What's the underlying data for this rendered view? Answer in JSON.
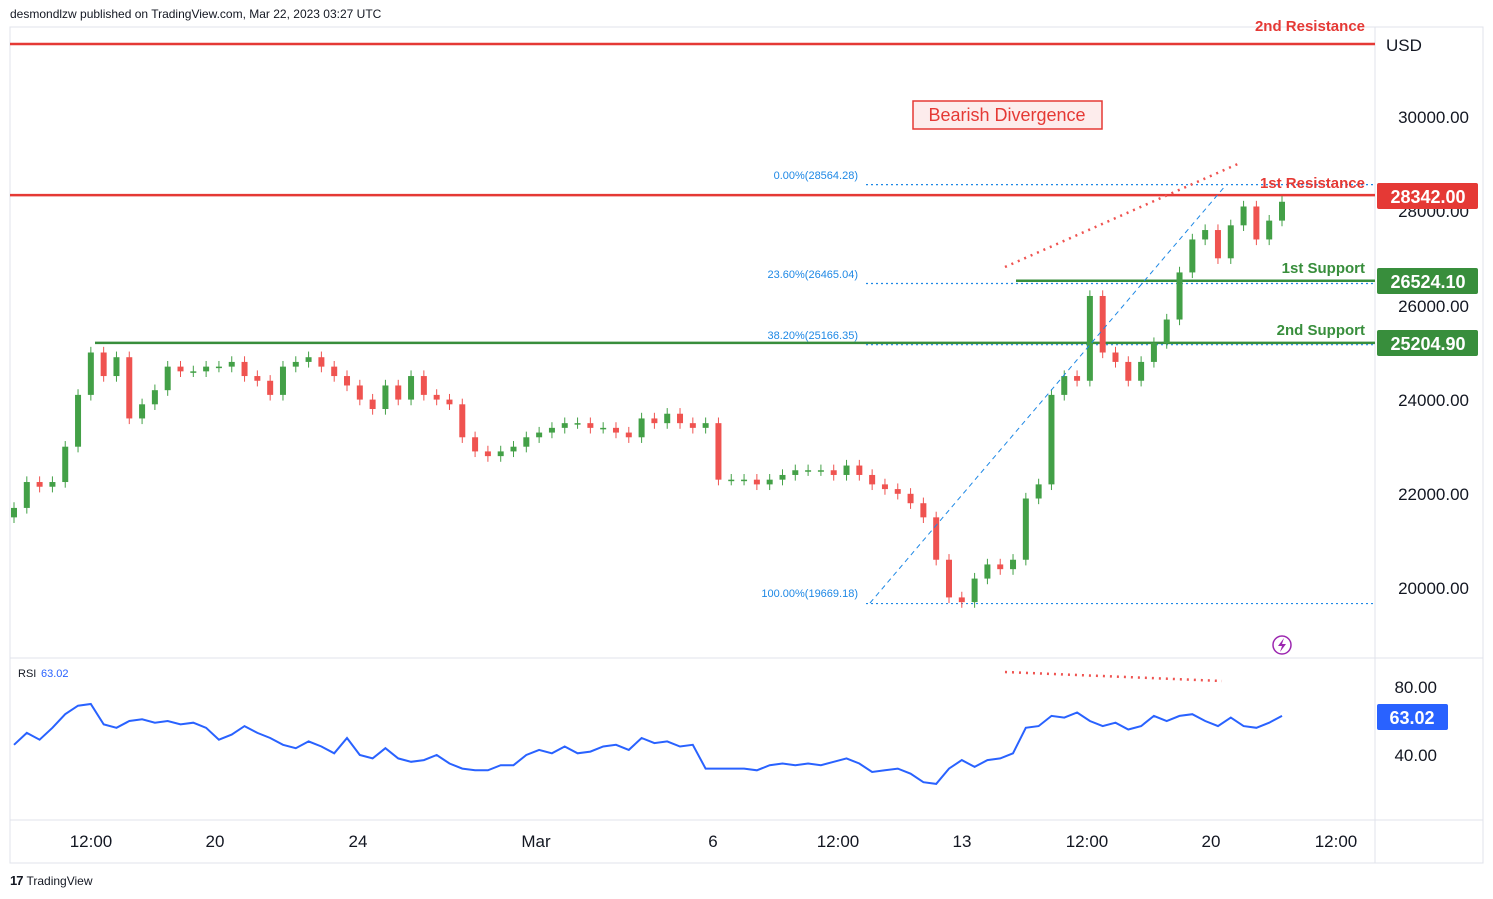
{
  "header": {
    "published": "desmondlzw published on TradingView.com, Mar 22, 2023 03:27 UTC"
  },
  "footer": {
    "logo_glyph": "17",
    "brand": "TradingView"
  },
  "price_axis": {
    "currency": "USD",
    "ticks": [
      "30000.00",
      "28000.00",
      "26000.00",
      "24000.00",
      "22000.00",
      "20000.00"
    ]
  },
  "rsi_axis": {
    "ticks": [
      "80.00",
      "40.00"
    ]
  },
  "time_axis": {
    "ticks": [
      "12:00",
      "20",
      "24",
      "Mar",
      "6",
      "12:00",
      "13",
      "12:00",
      "20",
      "12:00"
    ]
  },
  "annotations": {
    "bearish_divergence": "Bearish Divergence",
    "second_resistance": "2nd Resistance",
    "first_resistance": "1st Resistance",
    "first_support": "1st Support",
    "second_support": "2nd Support"
  },
  "levels": {
    "first_resistance": "28342.00",
    "first_support": "26524.10",
    "second_support": "25204.90"
  },
  "fib": {
    "f0": "0.00%(28564.28)",
    "f236": "23.60%(26465.04)",
    "f382": "38.20%(25166.35)",
    "f100": "100.00%(19669.18)"
  },
  "rsi": {
    "label": "RSI",
    "value": "63.02"
  },
  "colors": {
    "up": "#43a047",
    "down": "#ef5350",
    "resistance": "#e53935",
    "support": "#388e3c",
    "fib": "#1e88e5",
    "rsi": "#2962ff",
    "purple": "#9c27b0"
  },
  "chart_data": {
    "type": "candlestick",
    "price_series": [
      21700,
      22250,
      22150,
      22250,
      23000,
      24100,
      25000,
      24500,
      24900,
      23600,
      23900,
      24200,
      24700,
      24600,
      24600,
      24700,
      24700,
      24800,
      24500,
      24400,
      24100,
      24700,
      24800,
      24900,
      24700,
      24500,
      24300,
      24000,
      23800,
      24300,
      24000,
      24500,
      24100,
      24000,
      23900,
      23200,
      22900,
      22800,
      22900,
      23000,
      23200,
      23300,
      23400,
      23500,
      23500,
      23400,
      23400,
      23300,
      23200,
      23600,
      23500,
      23700,
      23500,
      23400,
      23500,
      22300,
      22300,
      22300,
      22200,
      22300,
      22400,
      22500,
      22500,
      22500,
      22400,
      22600,
      22400,
      22200,
      22100,
      22000,
      21800,
      21500,
      20600,
      19800,
      19700,
      20200,
      20500,
      20400,
      20600,
      21900,
      22200,
      24100,
      24500,
      24400,
      26200,
      25000,
      24800,
      24400,
      24800,
      25200,
      25700,
      26700,
      27400,
      27600,
      27000,
      27700,
      28100,
      27400,
      27800,
      28200
    ],
    "rsi_series": [
      46,
      53,
      49,
      56,
      64,
      69,
      70,
      58,
      56,
      60,
      61,
      59,
      60,
      58,
      59,
      56,
      49,
      52,
      57,
      53,
      50,
      46,
      44,
      48,
      45,
      41,
      50,
      40,
      38,
      44,
      38,
      36,
      37,
      40,
      35,
      32,
      31,
      31,
      34,
      34,
      40,
      43,
      41,
      45,
      41,
      42,
      45,
      46,
      43,
      50,
      47,
      48,
      45,
      46,
      32,
      32,
      32,
      32,
      31,
      34,
      35,
      34,
      35,
      34,
      36,
      38,
      35,
      30,
      31,
      32,
      29,
      24,
      23,
      32,
      37,
      33,
      37,
      38,
      41,
      56,
      57,
      63,
      62,
      65,
      60,
      57,
      59,
      55,
      57,
      63,
      60,
      63,
      64,
      60,
      57,
      62,
      57,
      56,
      59,
      63.02
    ],
    "levels": [
      {
        "name": "2nd Resistance",
        "value": 31550
      },
      {
        "name": "1st Resistance",
        "value": 28342.0
      },
      {
        "name": "1st Support",
        "value": 26524.1
      },
      {
        "name": "2nd Support",
        "value": 25204.9
      }
    ],
    "fibonacci": [
      {
        "ratio": "0.00%",
        "value": 28564.28
      },
      {
        "ratio": "23.60%",
        "value": 26465.04
      },
      {
        "ratio": "38.20%",
        "value": 25166.35
      },
      {
        "ratio": "100.00%",
        "value": 19669.18
      }
    ],
    "ylim": [
      18700,
      31700
    ],
    "rsi_ylim": [
      10,
      100
    ]
  }
}
